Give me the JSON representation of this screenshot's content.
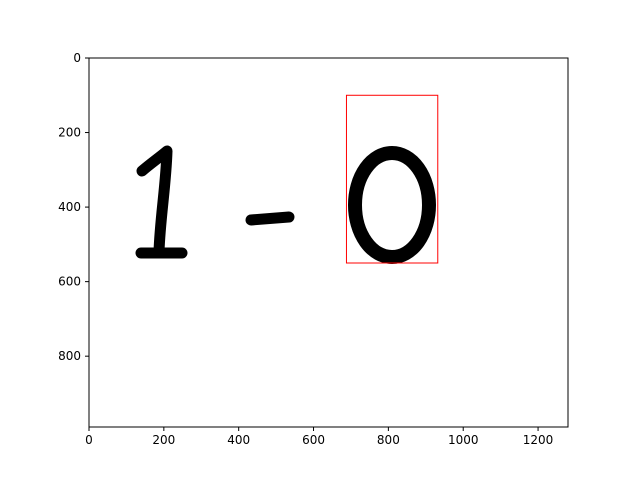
{
  "plot": {
    "x_ticks": [
      "0",
      "200",
      "400",
      "600",
      "800",
      "1000",
      "1200"
    ],
    "y_ticks": [
      "0",
      "200",
      "400",
      "600",
      "800"
    ],
    "x_tick_values": [
      0,
      200,
      400,
      600,
      800,
      1000,
      1200
    ],
    "y_tick_values": [
      0,
      200,
      400,
      600,
      800
    ],
    "xlim": [
      0,
      1280
    ],
    "ylim": [
      990,
      0
    ],
    "image_content": "1 - 0",
    "highlight_box": {
      "x0": 688,
      "y0": 100,
      "x1": 932,
      "y1": 550,
      "color": "#ff0000"
    },
    "colors": {
      "axes": "#000000",
      "ink": "#000000",
      "background": "#ffffff"
    }
  }
}
